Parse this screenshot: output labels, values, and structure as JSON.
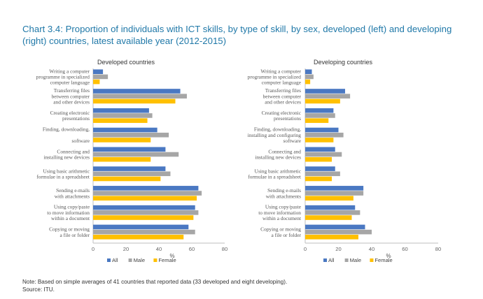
{
  "title": "Chart 3.4:  Proportion of individuals with ICT skills, by type of skill, by sex, developed (left) and developing (right) countries, latest available year (2012-2015)",
  "note": "Note: Based on simple averages of 41 countries that reported data (33 developed and eight developing).",
  "source": "Source: ITU.",
  "colors": {
    "All": "#4a78c2",
    "Male": "#a6a6a6",
    "Female": "#ffc000"
  },
  "chart_data": [
    {
      "type": "bar",
      "orientation": "horizontal",
      "title": "Developed countries",
      "xlabel": "%",
      "xlim": [
        0,
        80
      ],
      "xticks": [
        "0",
        "20",
        "40",
        "60",
        "80"
      ],
      "legend": "bottom",
      "categories": [
        [
          "Writing a computer",
          "programme in specialized",
          "computer language"
        ],
        [
          "Transferring files",
          "between computer",
          "and other devices"
        ],
        [
          "Creating electronic",
          "presentations"
        ],
        [
          "Finding, downloading,",
          "",
          "software"
        ],
        [
          "Connecting and",
          "installing new devices"
        ],
        [
          "Using basic arithmetic",
          "formulae in a spreadsheet"
        ],
        [
          "Sending e-mails",
          "with attachments"
        ],
        [
          "Using copy/paste",
          "to move information",
          "within a document"
        ],
        [
          "Copying or moving",
          "a file or folder"
        ]
      ],
      "series": [
        {
          "name": "All",
          "values": [
            6,
            53,
            34,
            39,
            44,
            44,
            64,
            62,
            58
          ]
        },
        {
          "name": "Male",
          "values": [
            9,
            57,
            36,
            46,
            52,
            47,
            66,
            64,
            62
          ]
        },
        {
          "name": "Female",
          "values": [
            4,
            50,
            33,
            35,
            35,
            41,
            63,
            61,
            55
          ]
        }
      ]
    },
    {
      "type": "bar",
      "orientation": "horizontal",
      "title": "Developing countries",
      "xlabel": "%",
      "xlim": [
        0,
        80
      ],
      "xticks": [
        "0",
        "20",
        "40",
        "60",
        "80"
      ],
      "legend": "bottom",
      "categories": [
        [
          "Writing a computer",
          "programme in specialized",
          "computer language"
        ],
        [
          "Transferring files",
          "between computer",
          "and other devices"
        ],
        [
          "Creating electronic",
          "presentations"
        ],
        [
          "Finding, downloading,",
          "installing and configuring",
          "software"
        ],
        [
          "Connecting and",
          "installing new devices"
        ],
        [
          "Using basic arithmetic",
          "formulae in a spreadsheet"
        ],
        [
          "Sending e-mails",
          "with attachments"
        ],
        [
          "Using copy/paste",
          "to move information",
          "within a document"
        ],
        [
          "Copying or moving",
          "a file or folder"
        ]
      ],
      "series": [
        {
          "name": "All",
          "values": [
            4,
            24,
            17,
            20,
            18,
            18,
            35,
            30,
            36
          ]
        },
        {
          "name": "Male",
          "values": [
            5,
            27,
            18,
            23,
            22,
            21,
            35,
            33,
            40
          ]
        },
        {
          "name": "Female",
          "values": [
            3,
            21,
            14,
            17,
            16,
            16,
            29,
            28,
            32
          ]
        }
      ]
    }
  ]
}
